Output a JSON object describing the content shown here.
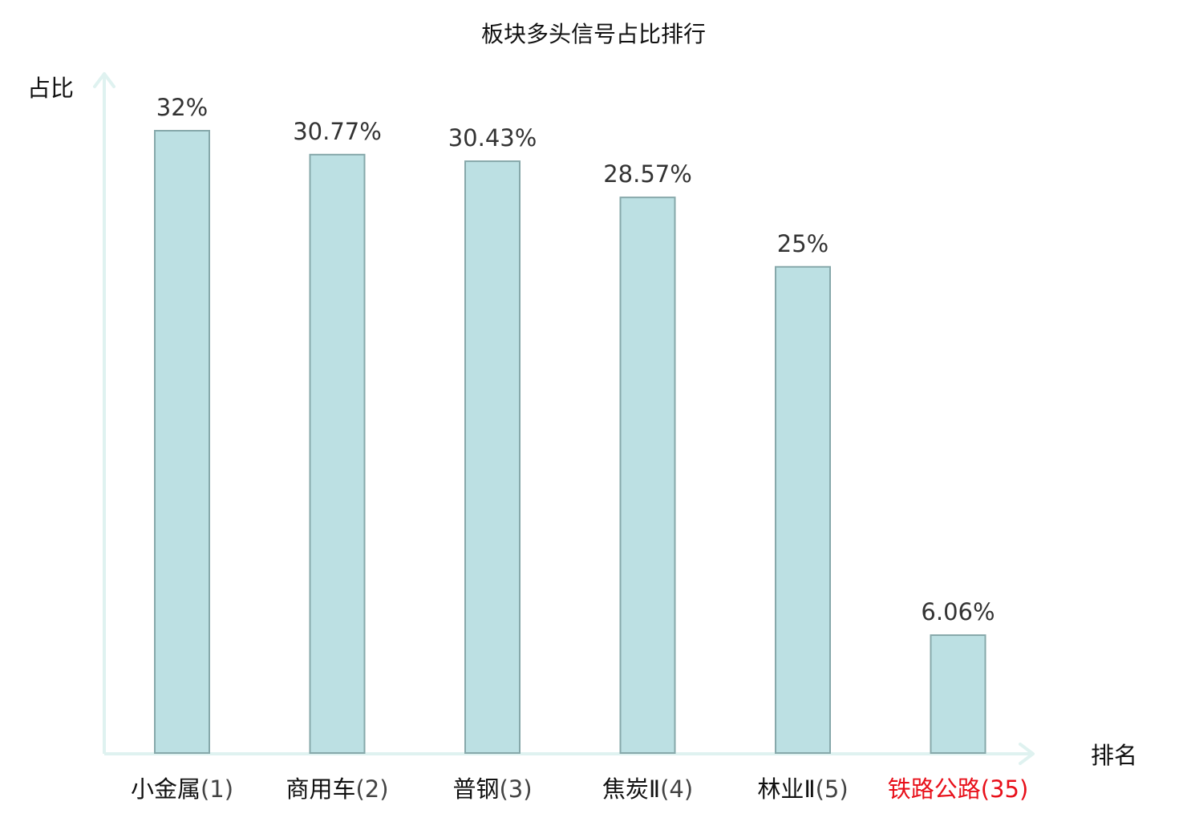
{
  "chart_data": {
    "type": "bar",
    "title": "板块多头信号占比排行",
    "ylabel": "占比",
    "xlabel": "排名",
    "ylim": [
      0,
      33.5
    ],
    "grid": false,
    "categories": [
      {
        "name": "小金属",
        "rank": "(1)",
        "highlight": false
      },
      {
        "name": "商用车",
        "rank": "(2)",
        "highlight": false
      },
      {
        "name": "普钢",
        "rank": "(3)",
        "highlight": false
      },
      {
        "name": "焦炭Ⅱ",
        "rank": "(4)",
        "highlight": false
      },
      {
        "name": "林业Ⅱ",
        "rank": "(5)",
        "highlight": false
      },
      {
        "name": "铁路公路",
        "rank": "(35)",
        "highlight": true
      }
    ],
    "values": [
      32,
      30.77,
      30.43,
      28.57,
      25,
      6.06
    ],
    "value_labels": [
      "32%",
      "30.77%",
      "30.43%",
      "28.57%",
      "25%",
      "6.06%"
    ]
  },
  "colors": {
    "bar_fill": "#bce0e3",
    "bar_stroke": "#86a8aa",
    "axis": "#dff2f0",
    "text": "#111111",
    "rank_text": "#444444",
    "value_text": "#333333",
    "highlight": "#e8101a"
  }
}
